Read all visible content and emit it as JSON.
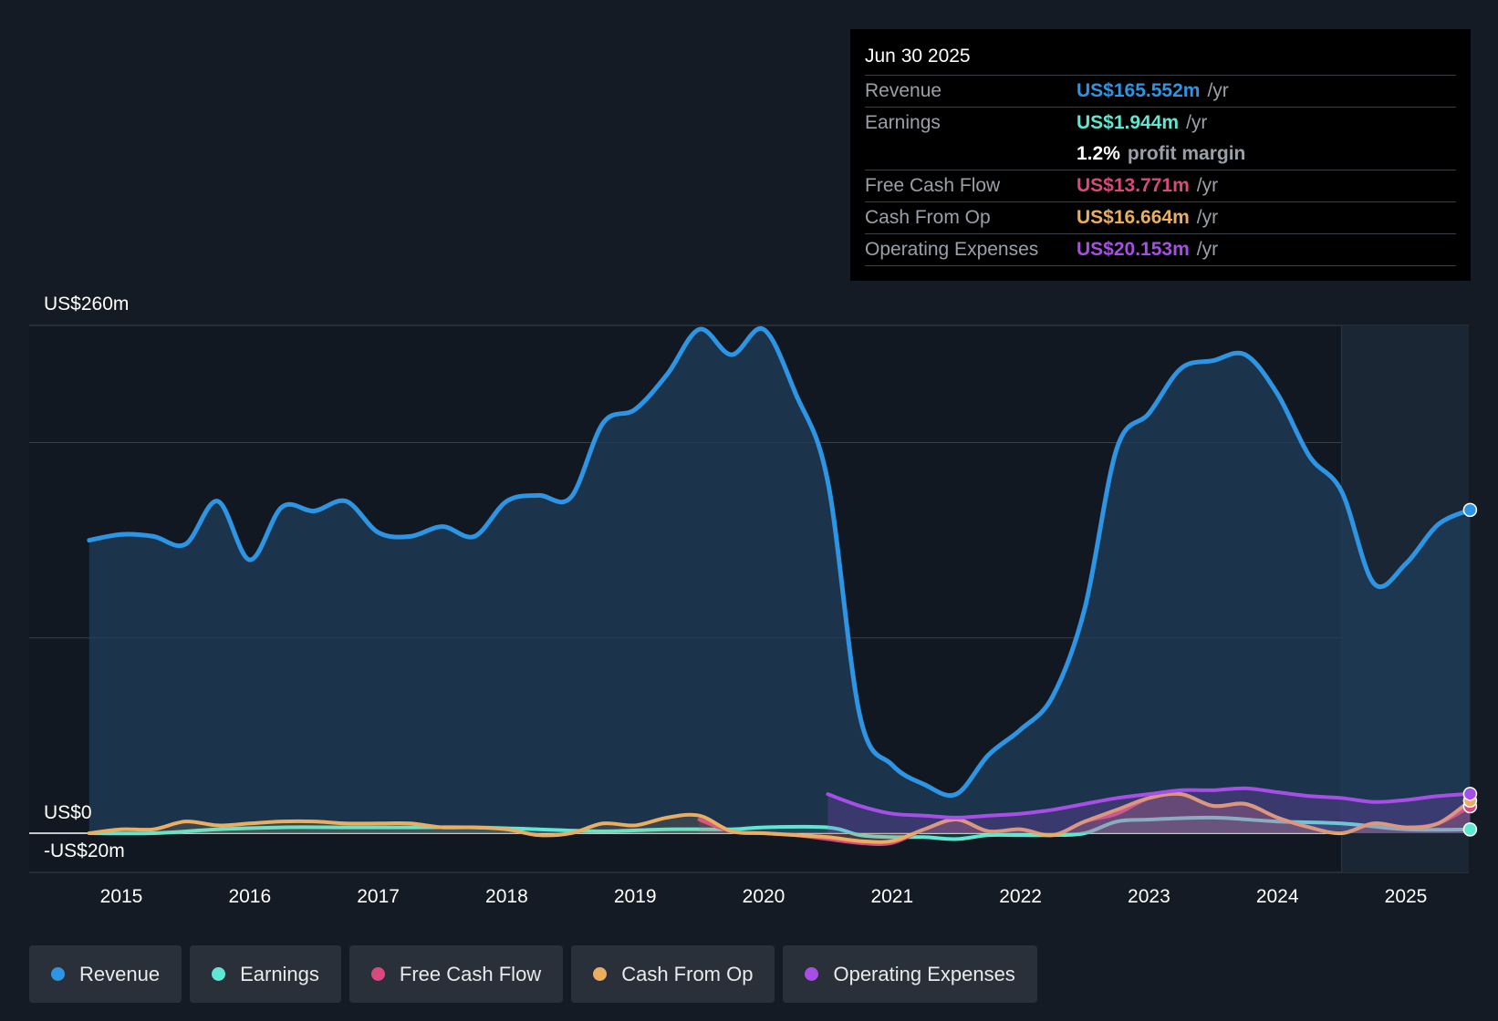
{
  "tooltip": {
    "date": "Jun 30 2025",
    "rows": [
      {
        "label": "Revenue",
        "value": "US$165.552m",
        "unit": "/yr",
        "color": "#2d95e3"
      },
      {
        "label": "Earnings",
        "value": "US$1.944m",
        "unit": "/yr",
        "color": "#5ee8d2"
      },
      {
        "label": "",
        "value": "1.2%",
        "unit": "profit margin",
        "color": "#ffffff"
      },
      {
        "label": "Free Cash Flow",
        "value": "US$13.771m",
        "unit": "/yr",
        "color": "#d9487f"
      },
      {
        "label": "Cash From Op",
        "value": "US$16.664m",
        "unit": "/yr",
        "color": "#e9ae62"
      },
      {
        "label": "Operating Expenses",
        "value": "US$20.153m",
        "unit": "/yr",
        "color": "#a64ee6"
      }
    ]
  },
  "legend": [
    {
      "label": "Revenue",
      "color": "#2d95e3"
    },
    {
      "label": "Earnings",
      "color": "#5ee8d2"
    },
    {
      "label": "Free Cash Flow",
      "color": "#d9487f"
    },
    {
      "label": "Cash From Op",
      "color": "#e9ae62"
    },
    {
      "label": "Operating Expenses",
      "color": "#a64ee6"
    }
  ],
  "chart_data": {
    "type": "area",
    "title": "",
    "xlabel": "",
    "ylabel": "",
    "xlim": [
      2014.75,
      2025.5
    ],
    "ylim": [
      -20,
      260
    ],
    "y_axis_labels": [
      "US$260m",
      "US$0",
      "-US$20m"
    ],
    "x_tick_labels": [
      "2015",
      "2016",
      "2017",
      "2018",
      "2019",
      "2020",
      "2021",
      "2022",
      "2023",
      "2024",
      "2025"
    ],
    "forecast_shade_start": 2024.5,
    "series": [
      {
        "name": "Revenue",
        "color": "#2d95e3",
        "x": [
          2014.75,
          2015.0,
          2015.25,
          2015.5,
          2015.75,
          2016.0,
          2016.25,
          2016.5,
          2016.75,
          2017.0,
          2017.25,
          2017.5,
          2017.75,
          2018.0,
          2018.25,
          2018.5,
          2018.75,
          2019.0,
          2019.25,
          2019.5,
          2019.75,
          2020.0,
          2020.25,
          2020.5,
          2020.75,
          2021.0,
          2021.25,
          2021.5,
          2021.75,
          2022.0,
          2022.25,
          2022.5,
          2022.75,
          2023.0,
          2023.25,
          2023.5,
          2023.75,
          2024.0,
          2024.25,
          2024.5,
          2024.75,
          2025.0,
          2025.25,
          2025.5
        ],
        "values": [
          150,
          153,
          152,
          148,
          170,
          140,
          167,
          165,
          170,
          154,
          152,
          157,
          152,
          170,
          173,
          172,
          210,
          217,
          235,
          258,
          245,
          258,
          225,
          180,
          60,
          35,
          25,
          20,
          40,
          53,
          70,
          115,
          197,
          215,
          238,
          242,
          245,
          225,
          193,
          175,
          128,
          138,
          158,
          165.552
        ]
      },
      {
        "name": "Earnings",
        "color": "#5ee8d2",
        "x": [
          2014.75,
          2015.25,
          2015.75,
          2016.25,
          2016.75,
          2017.25,
          2017.75,
          2018.25,
          2018.75,
          2019.25,
          2019.75,
          2020.0,
          2020.5,
          2020.75,
          2021.0,
          2021.25,
          2021.5,
          2021.75,
          2022.0,
          2022.25,
          2022.5,
          2022.75,
          2023.0,
          2023.5,
          2024.0,
          2024.5,
          2025.0,
          2025.5
        ],
        "values": [
          0,
          0,
          2,
          3,
          3,
          3,
          3,
          2,
          1,
          2,
          2,
          3,
          3,
          -1,
          -2,
          -2,
          -3,
          -1,
          -1,
          -1,
          0,
          6,
          7,
          8,
          6,
          5,
          2,
          1.944
        ]
      },
      {
        "name": "Free Cash Flow",
        "color": "#d9487f",
        "x": [
          2019.5,
          2019.75,
          2020.0,
          2020.25,
          2020.5,
          2020.75,
          2021.0,
          2021.25,
          2021.5,
          2021.75,
          2022.0,
          2022.25,
          2022.5,
          2022.75,
          2023.0,
          2023.25,
          2023.5,
          2023.75,
          2024.0,
          2024.25,
          2024.5,
          2024.75,
          2025.0,
          2025.25,
          2025.5
        ],
        "values": [
          7,
          1,
          0,
          -1,
          -3,
          -5,
          -5,
          2,
          7,
          1,
          2,
          -1,
          6,
          10,
          18,
          20,
          14,
          15,
          8,
          3,
          0,
          5,
          3,
          5,
          13.771
        ]
      },
      {
        "name": "Cash From Op",
        "color": "#e9ae62",
        "x": [
          2014.75,
          2015.0,
          2015.25,
          2015.5,
          2015.75,
          2016.0,
          2016.25,
          2016.5,
          2016.75,
          2017.0,
          2017.25,
          2017.5,
          2017.75,
          2018.0,
          2018.25,
          2018.5,
          2018.75,
          2019.0,
          2019.25,
          2019.5,
          2019.75,
          2020.0,
          2020.25,
          2020.5,
          2020.75,
          2021.0,
          2021.25,
          2021.5,
          2021.75,
          2022.0,
          2022.25,
          2022.5,
          2022.75,
          2023.0,
          2023.25,
          2023.5,
          2023.75,
          2024.0,
          2024.25,
          2024.5,
          2024.75,
          2025.0,
          2025.25,
          2025.5
        ],
        "values": [
          0,
          2,
          2,
          6,
          4,
          5,
          6,
          6,
          5,
          5,
          5,
          3,
          3,
          2,
          -1,
          0,
          5,
          4,
          8,
          9,
          1,
          0,
          -1,
          -2,
          -4,
          -4,
          2,
          7,
          1,
          2,
          -1,
          6,
          12,
          18,
          20,
          14,
          15,
          8,
          3,
          0,
          5,
          3,
          5,
          16.664
        ]
      },
      {
        "name": "Operating Expenses",
        "color": "#a64ee6",
        "x": [
          2020.5,
          2020.75,
          2021.0,
          2021.25,
          2021.5,
          2021.75,
          2022.0,
          2022.25,
          2022.5,
          2022.75,
          2023.0,
          2023.25,
          2023.5,
          2023.75,
          2024.0,
          2024.25,
          2024.5,
          2024.75,
          2025.0,
          2025.25,
          2025.5
        ],
        "values": [
          20,
          14,
          10,
          9,
          8,
          9,
          10,
          12,
          15,
          18,
          20,
          22,
          22,
          23,
          21,
          19,
          18,
          16,
          17,
          19,
          20.153
        ]
      }
    ]
  }
}
